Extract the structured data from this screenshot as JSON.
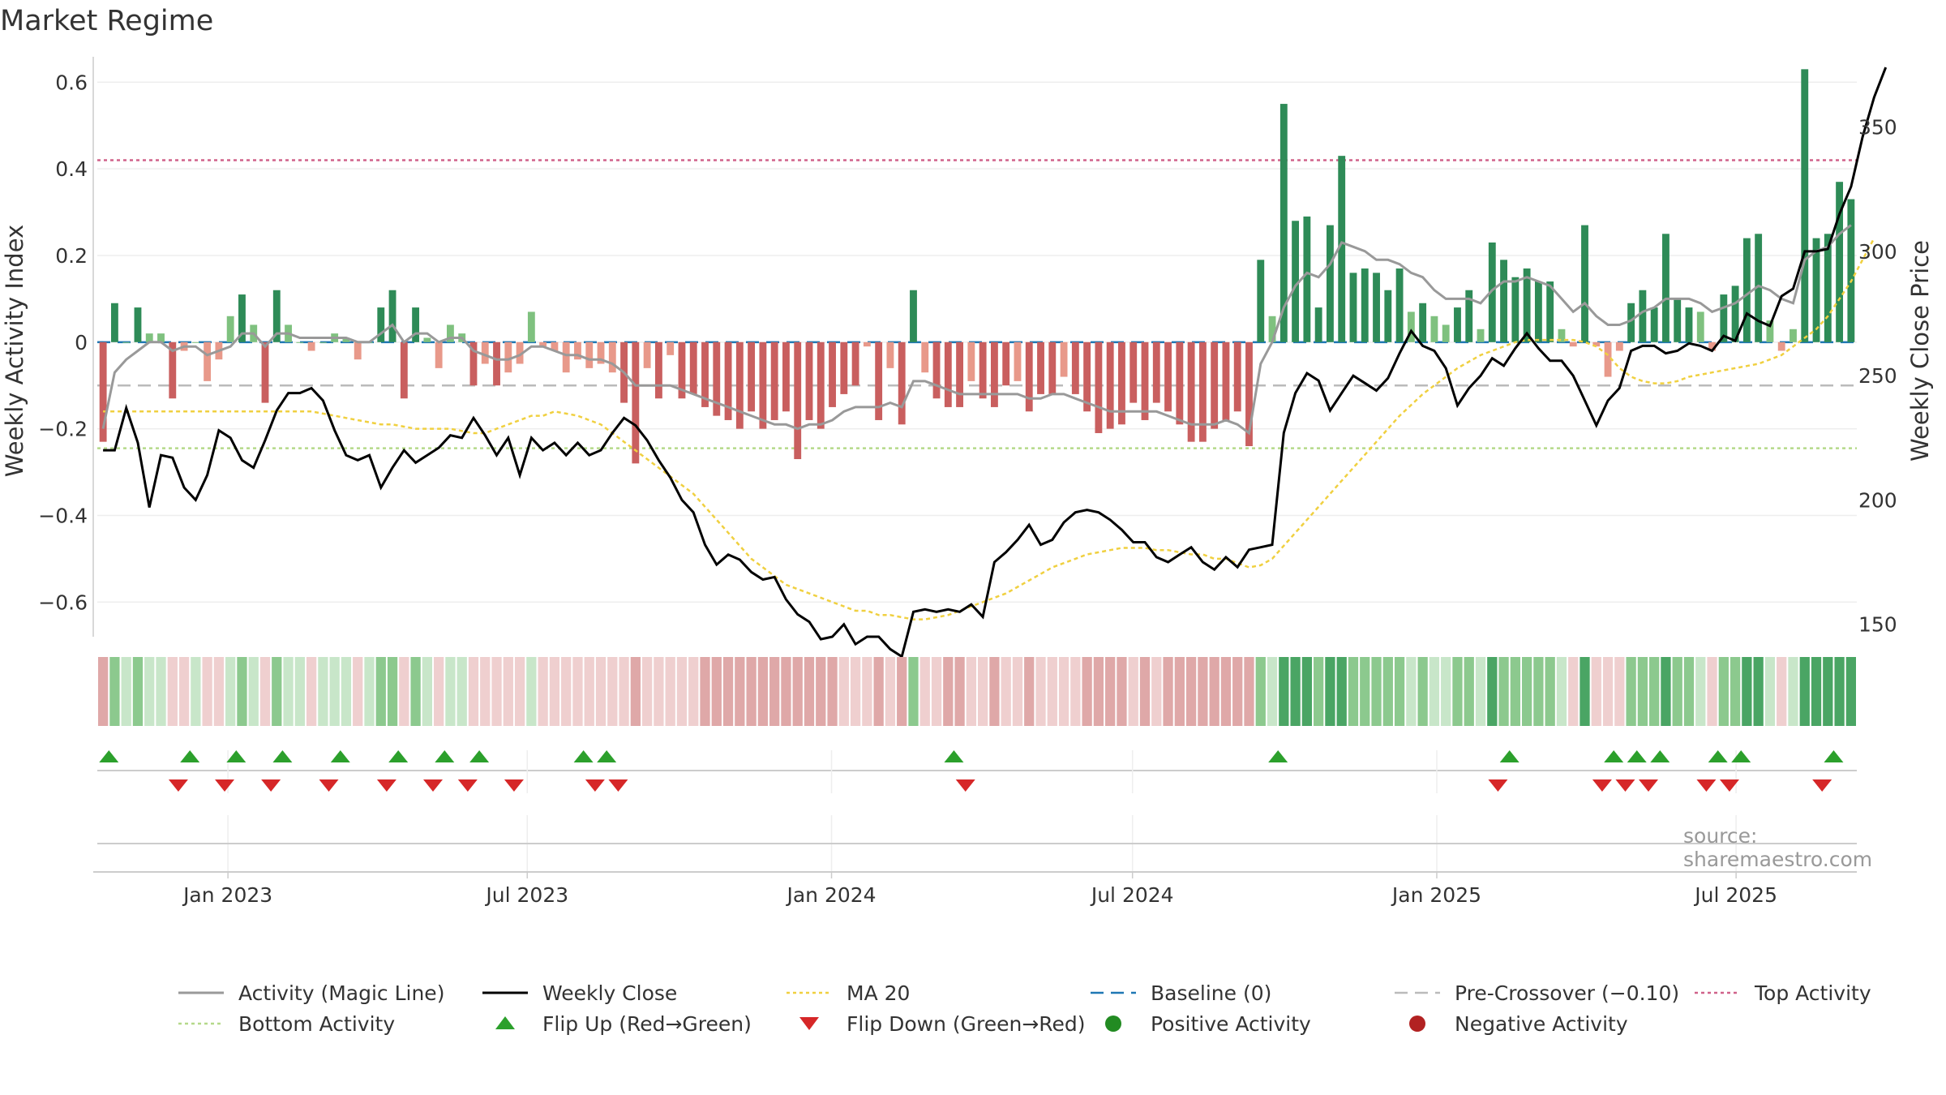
{
  "title": "Market Regime",
  "source": "source: sharemaestro.com",
  "colors": {
    "pos_strong": "#2e8b57",
    "pos_light": "#7fc17f",
    "neg_strong": "#c95f5f",
    "neg_light": "#e8998a",
    "magic": "#999999",
    "close": "#000000",
    "ma": "#f0d040",
    "baseline": "#1f77b4",
    "pre": "#bbbbbb",
    "top": "#d0628a",
    "bottom": "#b5d98a",
    "flip_up": "#2ca02c",
    "flip_down": "#d62728",
    "positive_dot": "#228b22",
    "negative_dot": "#b22222"
  },
  "chart_data": {
    "type": "bar",
    "title": "Market Regime",
    "ylabel": "Weekly Activity Index",
    "y2label": "Weekly Close Price",
    "ylim": [
      -0.68,
      0.64
    ],
    "y2lim": [
      145,
      375
    ],
    "yticks": [
      0.6,
      0.4,
      0.2,
      0,
      -0.2,
      -0.4,
      -0.6
    ],
    "ytick_labels": [
      "0.6",
      "0.4",
      "0.2",
      "0",
      "−0.2",
      "−0.4",
      "−0.6"
    ],
    "y2ticks": [
      350,
      300,
      250,
      200,
      150
    ],
    "y2tick_labels": [
      "350",
      "300",
      "250",
      "200",
      "150"
    ],
    "x_start": "2022-10-14",
    "x_end": "2025-09-12",
    "xticks": [
      {
        "date": "2023-01-01",
        "label": "Jan 2023"
      },
      {
        "date": "2023-07-01",
        "label": "Jul 2023"
      },
      {
        "date": "2024-01-01",
        "label": "Jan 2024"
      },
      {
        "date": "2024-07-01",
        "label": "Jul 2024"
      },
      {
        "date": "2025-01-01",
        "label": "Jan 2025"
      },
      {
        "date": "2025-07-01",
        "label": "Jul 2025"
      }
    ],
    "reference_lines": {
      "baseline": 0,
      "pre_crossover": -0.1,
      "top_activity": 0.42,
      "bottom_activity": -0.245
    },
    "activity": [
      -0.23,
      0.09,
      0,
      0.08,
      0.02,
      0.02,
      -0.13,
      -0.02,
      0,
      -0.09,
      -0.04,
      0.06,
      0.11,
      0.04,
      -0.14,
      0.12,
      0.04,
      0,
      -0.02,
      0,
      0.02,
      0.01,
      -0.04,
      0,
      0.08,
      0.12,
      -0.13,
      0.08,
      0.01,
      -0.06,
      0.04,
      0.02,
      -0.1,
      -0.05,
      -0.1,
      -0.07,
      -0.05,
      0.07,
      -0.01,
      -0.02,
      -0.07,
      -0.04,
      -0.06,
      -0.05,
      -0.07,
      -0.14,
      -0.28,
      -0.06,
      -0.13,
      -0.03,
      -0.13,
      -0.12,
      -0.15,
      -0.17,
      -0.18,
      -0.2,
      -0.16,
      -0.2,
      -0.18,
      -0.16,
      -0.27,
      -0.18,
      -0.2,
      -0.15,
      -0.12,
      -0.1,
      -0.01,
      -0.18,
      -0.06,
      -0.19,
      0.12,
      -0.07,
      -0.13,
      -0.15,
      -0.15,
      -0.09,
      -0.13,
      -0.15,
      -0.1,
      -0.09,
      -0.16,
      -0.12,
      -0.12,
      -0.08,
      -0.12,
      -0.16,
      -0.21,
      -0.2,
      -0.19,
      -0.14,
      -0.18,
      -0.14,
      -0.16,
      -0.19,
      -0.23,
      -0.23,
      -0.2,
      -0.18,
      -0.16,
      -0.24,
      0.19,
      0.06,
      0.55,
      0.28,
      0.29,
      0.08,
      0.27,
      0.43,
      0.16,
      0.17,
      0.16,
      0.12,
      0.17,
      0.07,
      0.09,
      0.06,
      0.04,
      0.08,
      0.12,
      0.03,
      0.23,
      0.19,
      0.15,
      0.17,
      0.14,
      0.14,
      0.03,
      -0.01,
      0.27,
      -0.01,
      -0.08,
      -0.02,
      0.09,
      0.12,
      0.08,
      0.25,
      0.1,
      0.08,
      0.07,
      -0.02,
      0.11,
      0.13,
      0.24,
      0.25,
      0.05,
      -0.02,
      0.03,
      0.63,
      0.24,
      0.25,
      0.37,
      0.33
    ],
    "magic_line": [
      -0.2,
      -0.07,
      -0.04,
      -0.02,
      0,
      0,
      -0.02,
      -0.01,
      -0.01,
      -0.03,
      -0.02,
      -0.01,
      0.02,
      0.02,
      -0.01,
      0.02,
      0.02,
      0.01,
      0.01,
      0.01,
      0.01,
      0.01,
      0,
      0,
      0.02,
      0.04,
      0,
      0.02,
      0.02,
      0,
      0.01,
      0.01,
      -0.02,
      -0.03,
      -0.04,
      -0.04,
      -0.03,
      -0.01,
      -0.01,
      -0.02,
      -0.03,
      -0.03,
      -0.04,
      -0.04,
      -0.05,
      -0.07,
      -0.1,
      -0.1,
      -0.1,
      -0.1,
      -0.11,
      -0.12,
      -0.13,
      -0.14,
      -0.15,
      -0.16,
      -0.17,
      -0.18,
      -0.19,
      -0.19,
      -0.2,
      -0.19,
      -0.19,
      -0.18,
      -0.16,
      -0.15,
      -0.15,
      -0.15,
      -0.14,
      -0.15,
      -0.09,
      -0.09,
      -0.1,
      -0.11,
      -0.12,
      -0.12,
      -0.12,
      -0.12,
      -0.12,
      -0.12,
      -0.13,
      -0.13,
      -0.12,
      -0.12,
      -0.13,
      -0.14,
      -0.15,
      -0.16,
      -0.16,
      -0.16,
      -0.16,
      -0.16,
      -0.17,
      -0.18,
      -0.19,
      -0.19,
      -0.19,
      -0.18,
      -0.19,
      -0.21,
      -0.05,
      0,
      0.08,
      0.13,
      0.16,
      0.15,
      0.18,
      0.23,
      0.22,
      0.21,
      0.19,
      0.19,
      0.18,
      0.16,
      0.15,
      0.12,
      0.1,
      0.1,
      0.1,
      0.09,
      0.12,
      0.14,
      0.14,
      0.15,
      0.14,
      0.13,
      0.1,
      0.07,
      0.09,
      0.06,
      0.04,
      0.04,
      0.05,
      0.07,
      0.08,
      0.1,
      0.1,
      0.1,
      0.09,
      0.07,
      0.08,
      0.09,
      0.11,
      0.13,
      0.12,
      0.1,
      0.09,
      0.19,
      0.21,
      0.22,
      0.25,
      0.27
    ],
    "ma20": [
      -0.16,
      -0.16,
      -0.16,
      -0.16,
      -0.16,
      -0.16,
      -0.16,
      -0.16,
      -0.16,
      -0.16,
      -0.16,
      -0.16,
      -0.16,
      -0.16,
      -0.16,
      -0.16,
      -0.16,
      -0.16,
      -0.16,
      -0.165,
      -0.17,
      -0.175,
      -0.18,
      -0.185,
      -0.19,
      -0.19,
      -0.195,
      -0.2,
      -0.2,
      -0.2,
      -0.2,
      -0.205,
      -0.21,
      -0.21,
      -0.2,
      -0.19,
      -0.18,
      -0.17,
      -0.17,
      -0.16,
      -0.165,
      -0.17,
      -0.18,
      -0.19,
      -0.21,
      -0.23,
      -0.25,
      -0.27,
      -0.29,
      -0.31,
      -0.33,
      -0.35,
      -0.38,
      -0.41,
      -0.44,
      -0.47,
      -0.5,
      -0.52,
      -0.54,
      -0.56,
      -0.57,
      -0.58,
      -0.59,
      -0.6,
      -0.61,
      -0.62,
      -0.62,
      -0.63,
      -0.63,
      -0.635,
      -0.64,
      -0.64,
      -0.635,
      -0.63,
      -0.62,
      -0.61,
      -0.6,
      -0.59,
      -0.58,
      -0.565,
      -0.55,
      -0.535,
      -0.52,
      -0.51,
      -0.5,
      -0.49,
      -0.485,
      -0.48,
      -0.475,
      -0.475,
      -0.475,
      -0.48,
      -0.48,
      -0.485,
      -0.49,
      -0.49,
      -0.5,
      -0.5,
      -0.51,
      -0.52,
      -0.515,
      -0.5,
      -0.47,
      -0.44,
      -0.41,
      -0.38,
      -0.35,
      -0.32,
      -0.29,
      -0.26,
      -0.23,
      -0.2,
      -0.17,
      -0.145,
      -0.12,
      -0.1,
      -0.08,
      -0.06,
      -0.045,
      -0.03,
      -0.02,
      -0.01,
      0,
      0.005,
      0.005,
      0.005,
      0.005,
      0.005,
      0,
      -0.01,
      -0.03,
      -0.06,
      -0.08,
      -0.09,
      -0.095,
      -0.095,
      -0.09,
      -0.08,
      -0.075,
      -0.07,
      -0.065,
      -0.06,
      -0.055,
      -0.05,
      -0.04,
      -0.03,
      -0.01,
      0.01,
      0.03,
      0.06,
      0.1,
      0.14,
      0.19,
      0.24
    ],
    "close": [
      220,
      220,
      237,
      223,
      197,
      218,
      217,
      205,
      200,
      210,
      228,
      225,
      216,
      213,
      224,
      236,
      243,
      243,
      245,
      240,
      228,
      218,
      216,
      218,
      205,
      213,
      220,
      215,
      218,
      221,
      226,
      225,
      233,
      226,
      218,
      225,
      210,
      225,
      220,
      223,
      218,
      223,
      218,
      220,
      227,
      233,
      230,
      224,
      216,
      209,
      200,
      195,
      182,
      174,
      178,
      176,
      171,
      168,
      169,
      160,
      154,
      151,
      144,
      145,
      150,
      142,
      145,
      145,
      140,
      137,
      155,
      156,
      155,
      156,
      155,
      158,
      153,
      175,
      179,
      184,
      190,
      182,
      184,
      191,
      195,
      196,
      195,
      192,
      188,
      183,
      183,
      177,
      175,
      178,
      181,
      175,
      172,
      177,
      173,
      180,
      181,
      182,
      227,
      243,
      251,
      248,
      236,
      243,
      250,
      247,
      244,
      249,
      259,
      268,
      262,
      260,
      253,
      238,
      245,
      250,
      257,
      254,
      261,
      267,
      261,
      256,
      256,
      250,
      240,
      230,
      240,
      245,
      260,
      262,
      262,
      259,
      260,
      263,
      262,
      260,
      266,
      264,
      275,
      272,
      270,
      282,
      285,
      300,
      300,
      301,
      315,
      326,
      346,
      362,
      374
    ],
    "flip_up": [
      "2022-10-21",
      "2022-12-09",
      "2023-01-06",
      "2023-02-03",
      "2023-03-10",
      "2023-04-14",
      "2023-05-12",
      "2023-06-02",
      "2023-08-04",
      "2023-08-18",
      "2024-03-15",
      "2024-09-27",
      "2025-02-14",
      "2025-04-18",
      "2025-05-02",
      "2025-05-16",
      "2025-06-20",
      "2025-07-04",
      "2025-08-29"
    ],
    "flip_down": [
      "2022-12-02",
      "2022-12-30",
      "2023-01-27",
      "2023-03-03",
      "2023-04-07",
      "2023-05-05",
      "2023-05-26",
      "2023-06-23",
      "2023-08-11",
      "2023-08-25",
      "2024-03-22",
      "2025-02-07",
      "2025-04-11",
      "2025-04-25",
      "2025-05-09",
      "2025-06-13",
      "2025-06-27",
      "2025-08-22"
    ],
    "legend": [
      {
        "key": "magic",
        "label": "Activity (Magic Line)"
      },
      {
        "key": "close",
        "label": "Weekly Close"
      },
      {
        "key": "ma",
        "label": "MA 20"
      },
      {
        "key": "baseline",
        "label": "Baseline (0)"
      },
      {
        "key": "pre",
        "label": "Pre-Crossover (−0.10)"
      },
      {
        "key": "top",
        "label": "Top Activity"
      },
      {
        "key": "bottom",
        "label": "Bottom Activity"
      },
      {
        "key": "flip_up",
        "label": "Flip Up (Red→Green)"
      },
      {
        "key": "flip_down",
        "label": "Flip Down (Green→Red)"
      },
      {
        "key": "positive_dot",
        "label": "Positive Activity"
      },
      {
        "key": "negative_dot",
        "label": "Negative Activity"
      }
    ],
    "legend_position": "bottom",
    "grid": true
  }
}
